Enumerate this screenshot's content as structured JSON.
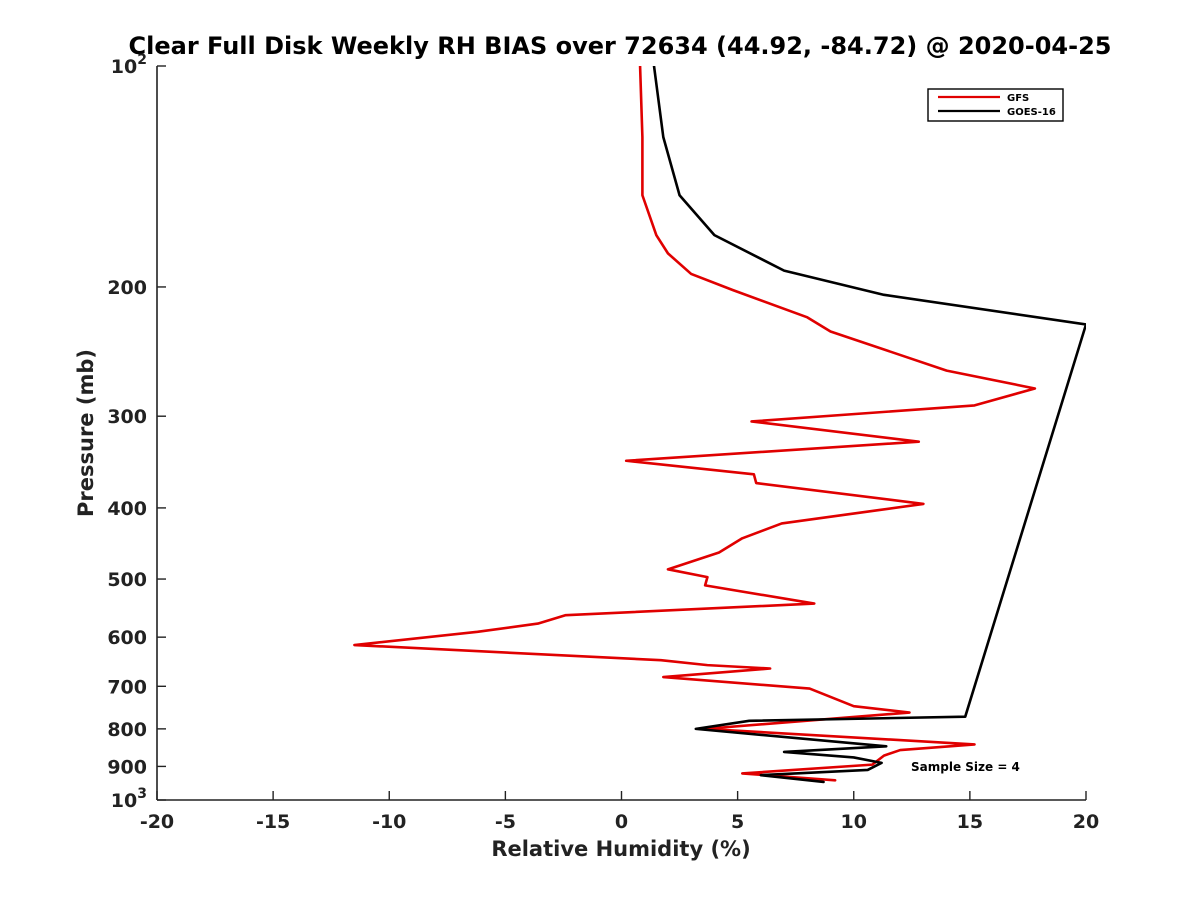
{
  "chart_data": {
    "type": "line",
    "title": "Clear Full Disk Weekly RH BIAS over 72634 (44.92, -84.72) @ 2020-04-25",
    "xlabel": "Relative Humidity (%)",
    "ylabel": "Pressure (mb)",
    "xlim": [
      -20,
      20
    ],
    "ylim": [
      100,
      1000
    ],
    "yscale": "log",
    "ydirection": "reverse",
    "xticks": [
      "-20",
      "-15",
      "-10",
      "-5",
      "0",
      "5",
      "10",
      "15",
      "20"
    ],
    "ytick_labels": [
      {
        "value": 100,
        "base": "10",
        "exp": "2"
      },
      {
        "value": 200,
        "label": "200"
      },
      {
        "value": 300,
        "label": "300"
      },
      {
        "value": 400,
        "label": "400"
      },
      {
        "value": 500,
        "label": "500"
      },
      {
        "value": 600,
        "label": "600"
      },
      {
        "value": 700,
        "label": "700"
      },
      {
        "value": 800,
        "label": "800"
      },
      {
        "value": 900,
        "label": "900"
      },
      {
        "value": 1000,
        "base": "10",
        "exp": "3"
      }
    ],
    "legend_position": "top-right",
    "annotation": "Sample Size = 4",
    "series": [
      {
        "name": "GFS",
        "color": "#e00000",
        "points": [
          [
            0.8,
            100
          ],
          [
            0.9,
            125
          ],
          [
            0.9,
            150
          ],
          [
            1.5,
            170
          ],
          [
            2.0,
            180
          ],
          [
            3.0,
            192
          ],
          [
            4.8,
            202
          ],
          [
            8.0,
            220
          ],
          [
            9.0,
            230
          ],
          [
            14.0,
            260
          ],
          [
            17.8,
            275
          ],
          [
            15.2,
            290
          ],
          [
            5.6,
            305
          ],
          [
            12.8,
            325
          ],
          [
            0.2,
            345
          ],
          [
            5.7,
            360
          ],
          [
            5.8,
            370
          ],
          [
            13.0,
            395
          ],
          [
            6.9,
            420
          ],
          [
            5.2,
            440
          ],
          [
            4.2,
            460
          ],
          [
            2.0,
            485
          ],
          [
            3.7,
            497
          ],
          [
            3.6,
            510
          ],
          [
            8.3,
            540
          ],
          [
            -2.4,
            560
          ],
          [
            -3.6,
            575
          ],
          [
            -6.2,
            590
          ],
          [
            -11.5,
            615
          ],
          [
            1.7,
            645
          ],
          [
            3.7,
            655
          ],
          [
            6.4,
            662
          ],
          [
            1.8,
            680
          ],
          [
            8.1,
            705
          ],
          [
            10.0,
            745
          ],
          [
            12.4,
            760
          ],
          [
            3.6,
            800
          ],
          [
            15.2,
            840
          ],
          [
            12.0,
            855
          ],
          [
            11.3,
            870
          ],
          [
            10.8,
            895
          ],
          [
            5.2,
            920
          ],
          [
            9.2,
            940
          ]
        ]
      },
      {
        "name": "GOES-16",
        "color": "#000000",
        "points": [
          [
            1.4,
            100
          ],
          [
            1.8,
            125
          ],
          [
            2.5,
            150
          ],
          [
            4.0,
            170
          ],
          [
            7.0,
            190
          ],
          [
            11.3,
            205
          ],
          [
            20.0,
            225
          ],
          [
            14.8,
            770
          ],
          [
            5.5,
            780
          ],
          [
            3.2,
            800
          ],
          [
            11.4,
            845
          ],
          [
            7.0,
            860
          ],
          [
            10.0,
            875
          ],
          [
            11.2,
            890
          ],
          [
            10.6,
            910
          ],
          [
            6.0,
            925
          ],
          [
            8.7,
            945
          ]
        ]
      }
    ]
  }
}
